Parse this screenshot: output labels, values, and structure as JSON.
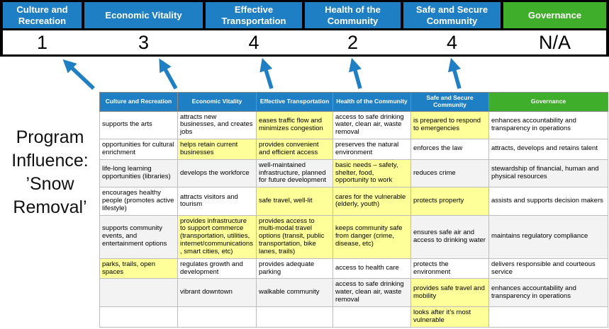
{
  "title": "Program Influence: ’Snow Removal’",
  "colors": {
    "blue_header": "#1F7FC4",
    "green_header": "#3FAE2A",
    "highlight_yellow": "#FFFF99",
    "arrow_blue": "#1F7FC4"
  },
  "banner": {
    "columns": [
      {
        "label": "Culture and Recreation",
        "score": "1",
        "color": "#1F7FC4"
      },
      {
        "label": "Economic Vitality",
        "score": "3",
        "color": "#1F7FC4"
      },
      {
        "label": "Effective Transportation",
        "score": "4",
        "color": "#1F7FC4"
      },
      {
        "label": "Health of the Community",
        "score": "2",
        "color": "#1F7FC4"
      },
      {
        "label": "Safe and Secure Community",
        "score": "4",
        "color": "#1F7FC4"
      },
      {
        "label": "Governance",
        "score": "N/A",
        "color": "#3FAE2A"
      }
    ]
  },
  "matrix": {
    "headers": [
      "Culture and Recreation",
      "Economic Vitality",
      "Effective Transportation",
      "Health of the Community",
      "Safe and Secure Community",
      "Governance"
    ],
    "rows": [
      [
        {
          "t": "supports the arts"
        },
        {
          "t": "attracts new businesses, and creates jobs"
        },
        {
          "t": "eases traffic flow and minimizes congestion",
          "hl": true
        },
        {
          "t": "access to safe drinking water, clean air, waste removal"
        },
        {
          "t": "is prepared to respond to emergencies",
          "hl": true
        },
        {
          "t": "enhances accountability and transparency in operations"
        }
      ],
      [
        {
          "t": "opportunities for cultural enrichment"
        },
        {
          "t": "helps retain current businesses",
          "hl": true
        },
        {
          "t": "provides convenient and efficient access",
          "hl": true
        },
        {
          "t": "preserves the natural environment"
        },
        {
          "t": "enforces the law"
        },
        {
          "t": "attracts, develops and retains talent"
        }
      ],
      [
        {
          "t": "life-long learning opportunities (libraries)"
        },
        {
          "t": "develops the workforce"
        },
        {
          "t": "well-maintained infrastructure, planned for future development"
        },
        {
          "t": "basic needs – safety, shelter, food, opportunity to work",
          "hl": true
        },
        {
          "t": "reduces crime"
        },
        {
          "t": "stewardship of financial, human and physical resources"
        }
      ],
      [
        {
          "t": "encourages healthy people (promotes active lifestyle)"
        },
        {
          "t": "attracts visitors and tourism"
        },
        {
          "t": "safe travel, well-lit",
          "hl": true
        },
        {
          "t": "cares for the vulnerable (elderly, youth)",
          "hl": true
        },
        {
          "t": "protects property",
          "hl": true
        },
        {
          "t": "assists and supports decision makers"
        }
      ],
      [
        {
          "t": "supports community events, and entertainment options"
        },
        {
          "t": "provides infrastructure to support commerce (transportation, utilities, internet/communications, smart cities, etc)",
          "hl": true
        },
        {
          "t": "provides access to multi-modal travel options (transit, public transportation, bike lanes, trails)",
          "hl": true
        },
        {
          "t": "keeps community safe from danger (crime, disease, etc)",
          "hl": true
        },
        {
          "t": "ensures safe air and access to drinking water"
        },
        {
          "t": "maintains regulatory compliance"
        }
      ],
      [
        {
          "t": "parks, trails, open spaces",
          "hl": true
        },
        {
          "t": "regulates growth and development"
        },
        {
          "t": "provides adequate parking"
        },
        {
          "t": "access to health care"
        },
        {
          "t": "protects the environment"
        },
        {
          "t": "delivers responsible and courteous service"
        }
      ],
      [
        {
          "t": ""
        },
        {
          "t": "vibrant downtown"
        },
        {
          "t": "walkable community"
        },
        {
          "t": "access to safe drinking water, clean air, waste removal"
        },
        {
          "t": "provides safe travel and mobility",
          "hl": true
        },
        {
          "t": "enhances accountability and transparency in operations"
        }
      ],
      [
        {
          "t": ""
        },
        {
          "t": ""
        },
        {
          "t": ""
        },
        {
          "t": ""
        },
        {
          "t": "looks after it’s most vulnerable",
          "hl": true
        },
        {
          "t": ""
        }
      ]
    ]
  }
}
